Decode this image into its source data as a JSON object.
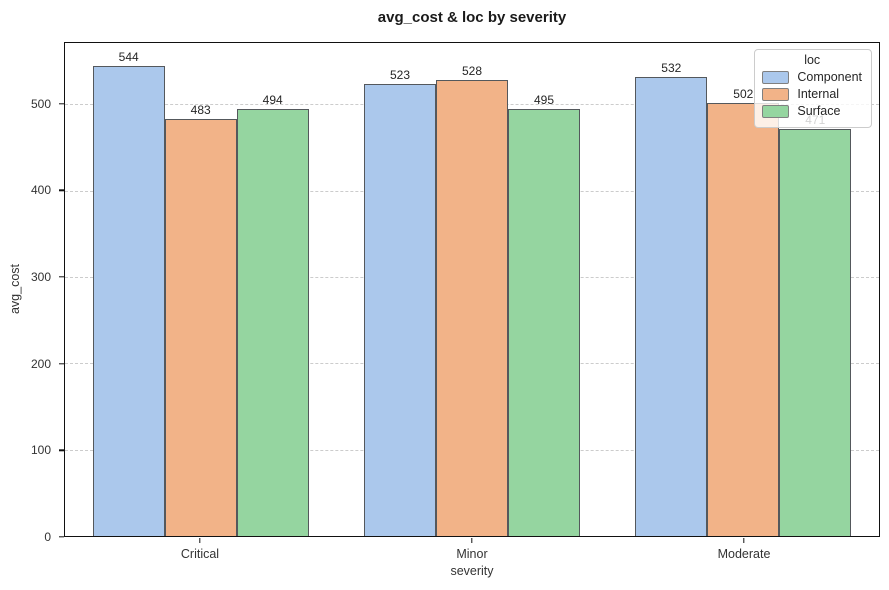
{
  "chart_data": {
    "type": "bar",
    "title": "avg_cost & loc by severity",
    "xlabel": "severity",
    "ylabel": "avg_cost",
    "legend_title": "loc",
    "legend_position": "upper-right",
    "categories": [
      "Critical",
      "Minor",
      "Moderate"
    ],
    "series": [
      {
        "name": "Component",
        "color": "#abc8ec",
        "values": [
          544,
          523,
          532
        ]
      },
      {
        "name": "Internal",
        "color": "#f2b388",
        "values": [
          483,
          528,
          502
        ]
      },
      {
        "name": "Surface",
        "color": "#95d5a0",
        "values": [
          494,
          495,
          471
        ]
      }
    ],
    "ylim": [
      0,
      571
    ],
    "yticks": [
      0,
      100,
      200,
      300,
      400,
      500
    ],
    "grid": "horizontal-dashed",
    "grid_color": "#cccccc",
    "bar_edge_color": "#54585c",
    "background_color": "#ffffff"
  }
}
